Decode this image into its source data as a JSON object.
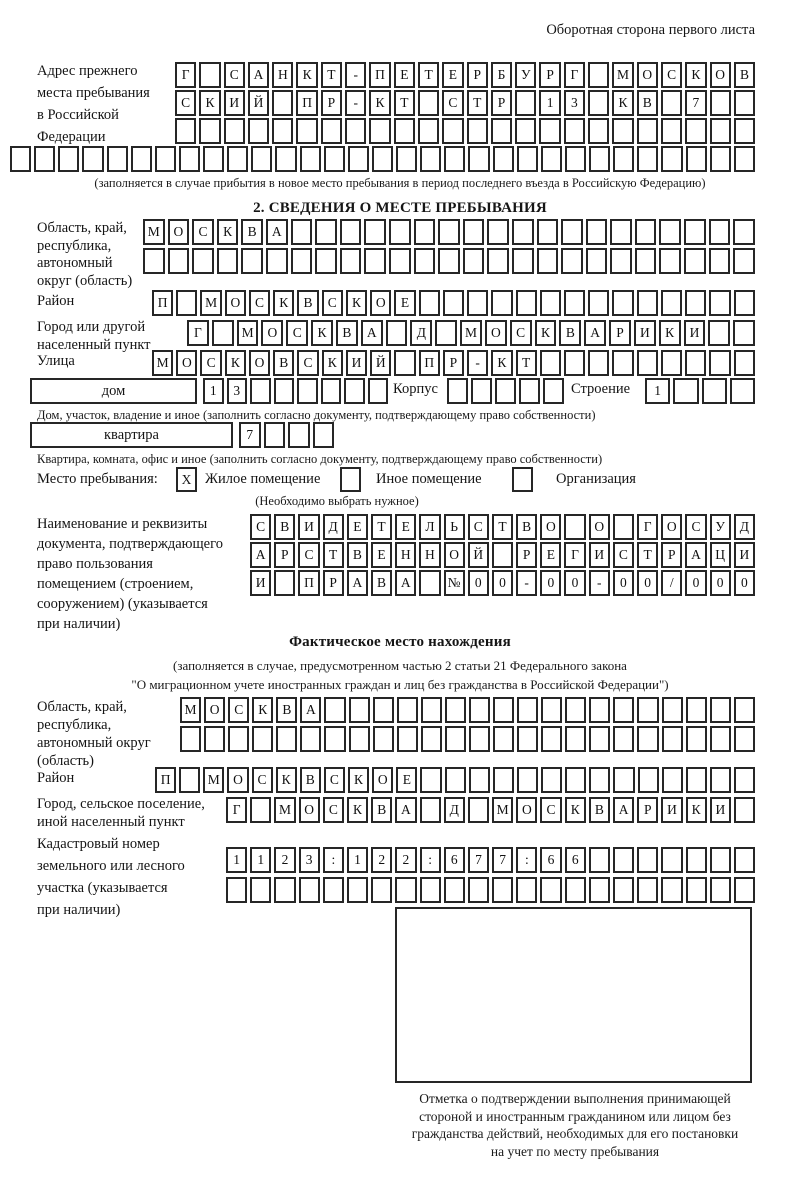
{
  "header": {
    "note": "Оборотная сторона первого листа"
  },
  "prev_address": {
    "label_lines": [
      "Адрес прежнего",
      "места пребывания",
      "в Российской",
      "Федерации"
    ],
    "rows": [
      {
        "n": 24,
        "text": "Г САНКТ-ПЕТЕРБУРГ МОСКОВ"
      },
      {
        "n": 24,
        "text": "СКИЙ ПР-КТ СТР 13 КВ 7"
      },
      {
        "n": 24,
        "text": ""
      },
      {
        "n": 31,
        "text": ""
      }
    ],
    "note": "(заполняется в случае прибытия в новое место пребывания в период последнего въезда в Российскую Федерацию)"
  },
  "section2": {
    "title": "2. СВЕДЕНИЯ О МЕСТЕ ПРЕБЫВАНИЯ",
    "region": {
      "label_lines": [
        "Область, край,",
        "республика,",
        "автономный",
        "округ (область)"
      ],
      "rows": [
        {
          "n": 25,
          "text": "МОСКВА"
        },
        {
          "n": 25,
          "text": ""
        }
      ]
    },
    "district": {
      "label": "Район",
      "row": {
        "n": 25,
        "text": "П МОСКВСКОЕ"
      }
    },
    "city": {
      "label_lines": [
        "Город или другой",
        "населенный пункт"
      ],
      "row": {
        "n": 23,
        "text": "Г МОСКВА Д МОСКВАРИКИ"
      }
    },
    "street": {
      "label": "Улица",
      "row": {
        "n": 25,
        "text": "МОСКОВСКИЙ ПР-КТ"
      }
    },
    "house": {
      "box_label": "дом",
      "house_row": {
        "n": 8,
        "text": "13"
      },
      "korpus_label": "Корпус",
      "korpus_row": {
        "n": 5,
        "text": ""
      },
      "stroenie_label": "Строение",
      "stroenie_row": {
        "n": 4,
        "text": "1"
      },
      "note": "Дом, участок, владение и иное (заполнить согласно документу, подтверждающему право собственности)"
    },
    "apartment": {
      "box_label": "квартира",
      "row": {
        "n": 4,
        "text": "7"
      },
      "note": "Квартира, комната, офис и иное (заполнить согласно документу, подтверждающему право собственности)"
    },
    "stay_type": {
      "label": "Место пребывания:",
      "options": [
        {
          "label": "Жилое помещение",
          "checked": "X"
        },
        {
          "label": "Иное помещение",
          "checked": ""
        },
        {
          "label": "Организация",
          "checked": ""
        }
      ],
      "note": "(Необходимо выбрать нужное)"
    },
    "document": {
      "label_lines": [
        "Наименование и реквизиты",
        "документа, подтверждающего",
        "право пользования",
        "помещением (строением,",
        "сооружением) (указывается",
        "при наличии)"
      ],
      "rows": [
        {
          "n": 21,
          "text": "СВИДЕТЕЛЬСТВО О ГОСУД"
        },
        {
          "n": 21,
          "text": "АРСТВЕННОЙ РЕГИСТРАЦИ"
        },
        {
          "n": 21,
          "text": "И ПРАВА №00-00-00/000"
        }
      ]
    }
  },
  "actual_location": {
    "title": "Фактическое место нахождения",
    "note_lines": [
      "(заполняется в случае, предусмотренном частью 2 статьи 21 Федерального закона",
      "\"О миграционном учете иностранных граждан и лиц без гражданства в Российской Федерации\")"
    ],
    "region": {
      "label_lines": [
        "Область, край,",
        "республика,",
        "автономный округ",
        "(область)"
      ],
      "rows": [
        {
          "n": 24,
          "text": "МОСКВА"
        },
        {
          "n": 24,
          "text": ""
        }
      ]
    },
    "district": {
      "label": "Район",
      "row": {
        "n": 25,
        "text": "П МОСКВСКОЕ"
      }
    },
    "city": {
      "label_lines": [
        "Город, сельское поселение,",
        "иной населенный пункт"
      ],
      "row": {
        "n": 22,
        "text": "Г МОСКВА Д МОСКВАРИКИ"
      }
    },
    "cadastral": {
      "label_lines": [
        "Кадастровый номер",
        "земельного или лесного",
        "участка (указывается",
        "при наличии)"
      ],
      "rows": [
        {
          "n": 22,
          "text": "1123:122:677:66"
        },
        {
          "n": 22,
          "text": ""
        }
      ]
    },
    "stamp_note_lines": [
      "Отметка о подтверждении выполнения принимающей",
      "стороной и иностранным гражданином или лицом без",
      "гражданства действий, необходимых для его постановки",
      "на учет по месту пребывания"
    ]
  }
}
